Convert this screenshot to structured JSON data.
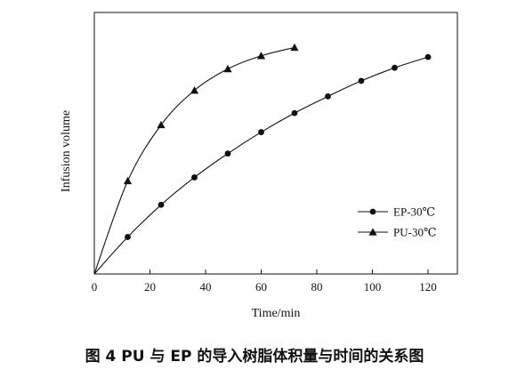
{
  "caption": "图 4   PU 与 EP 的导入树脂体积量与时间的关系图",
  "chart_data": {
    "type": "line",
    "title": "",
    "xlabel": "Time/min",
    "ylabel": "Infusion volume",
    "xlim": [
      0,
      130
    ],
    "ylim": [
      0,
      1
    ],
    "xticks": [
      0,
      20,
      40,
      60,
      80,
      100,
      120
    ],
    "yticks_labeled": false,
    "grid": false,
    "legend_position": "bottom-right",
    "series": [
      {
        "name": "EP-30℃",
        "marker": "circle",
        "x": [
          0,
          12,
          24,
          36,
          48,
          60,
          72,
          84,
          96,
          108,
          120
        ],
        "y": [
          0.0,
          0.155,
          0.29,
          0.405,
          0.505,
          0.595,
          0.675,
          0.745,
          0.81,
          0.865,
          0.91
        ]
      },
      {
        "name": "PU-30℃",
        "marker": "triangle",
        "x": [
          0,
          12,
          24,
          36,
          48,
          60,
          72
        ],
        "y": [
          0.0,
          0.39,
          0.625,
          0.77,
          0.86,
          0.915,
          0.95
        ]
      }
    ]
  }
}
